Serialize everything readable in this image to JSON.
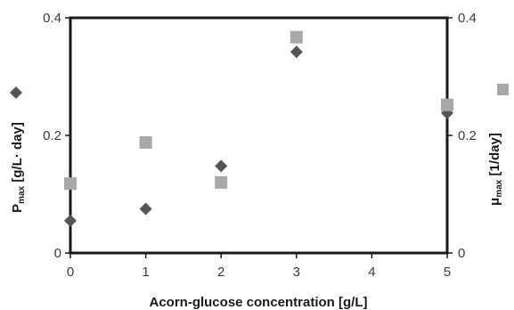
{
  "chart_data": {
    "type": "scatter",
    "title": "",
    "xlabel": "Acorn-glucose concentration [g/L]",
    "ylabel_left": {
      "main": "P",
      "sub": "max",
      "rest": " [g/L· day]"
    },
    "ylabel_right": {
      "main": "μ",
      "sub": "max",
      "rest": " [1/day]"
    },
    "xlim": [
      0,
      5
    ],
    "ylim_left": [
      0,
      0.4
    ],
    "ylim_right": [
      0,
      0.4
    ],
    "x_ticks": [
      "0",
      "1",
      "2",
      "3",
      "4",
      "5"
    ],
    "y_ticks_left": [
      "0",
      "0.2",
      "0.4"
    ],
    "y_ticks_right": [
      "0",
      "0.2",
      "0.4"
    ],
    "grid": false,
    "series": [
      {
        "axis": "left",
        "marker": "diamond",
        "color": "#555555",
        "points": [
          [
            0,
            0.055
          ],
          [
            1,
            0.075
          ],
          [
            2,
            0.148
          ],
          [
            3,
            0.342
          ],
          [
            5,
            0.238
          ]
        ]
      },
      {
        "axis": "right",
        "marker": "square",
        "color": "#a8a8a8",
        "points": [
          [
            0,
            0.118
          ],
          [
            1,
            0.188
          ],
          [
            2,
            0.12
          ],
          [
            3,
            0.367
          ],
          [
            5,
            0.252
          ]
        ]
      }
    ]
  }
}
